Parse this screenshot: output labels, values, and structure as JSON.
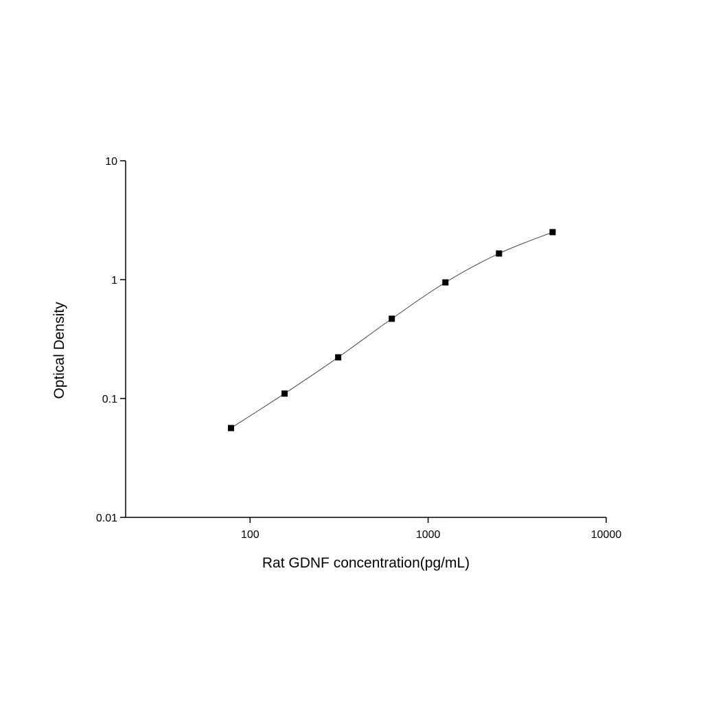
{
  "chart_data": {
    "type": "scatter",
    "x_label": "Rat GDNF concentration(pg/mL)",
    "y_label": "Optical Density",
    "x": [
      78.125,
      156.25,
      312.5,
      625,
      1250,
      2500,
      5000
    ],
    "series": [
      {
        "color": "#000000",
        "values": [
          0.0564,
          0.11,
          0.222,
          0.469,
          0.948,
          1.66,
          2.51
        ]
      }
    ],
    "xlim": [
      20,
      10000
    ],
    "ylim": [
      0.01,
      10
    ],
    "xticks": [
      100,
      1000,
      10000
    ],
    "yticks": [
      0.01,
      0.1,
      1,
      10
    ],
    "xscale": "log",
    "yscale": "log",
    "fit_line": true
  }
}
